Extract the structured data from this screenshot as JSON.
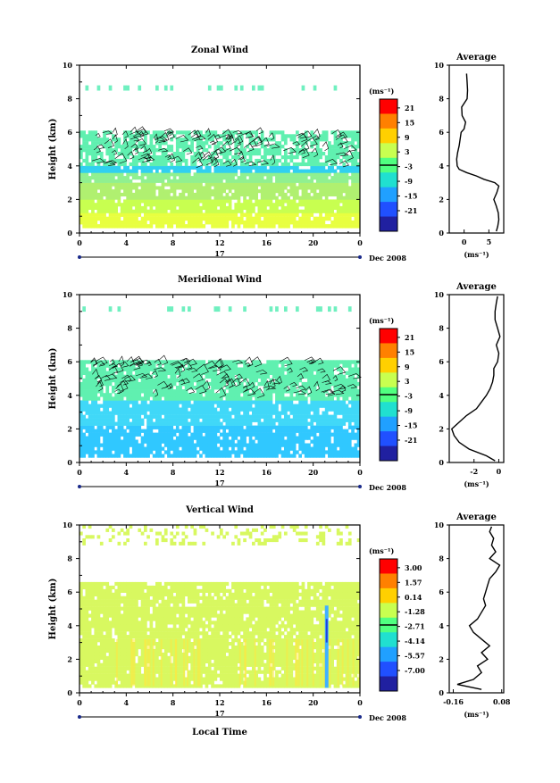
{
  "chart_data": [
    {
      "type": "heatmap",
      "title": "Zonal Wind",
      "ylabel": "Height (km)",
      "xlabel": "",
      "x_ticks": [
        "0",
        "4",
        "8",
        "12",
        "16",
        "20",
        "0"
      ],
      "y_ticks": [
        "0",
        "2",
        "4",
        "6",
        "8",
        "10"
      ],
      "xlim": [
        0,
        24
      ],
      "ylim": [
        0,
        10
      ],
      "day_label": "17",
      "month_label": "Dec 2008",
      "colorbar": {
        "unit": "(ms⁻¹)",
        "labels": [
          "21",
          "15",
          "9",
          "3",
          "-3",
          "-9",
          "-15",
          "-21"
        ],
        "colors": [
          "#ff0000",
          "#ff8000",
          "#ffd000",
          "#c8ff50",
          "#50ff80",
          "#20e0d0",
          "#20a0ff",
          "#2050ff",
          "#2020a0"
        ]
      },
      "layers": [
        {
          "height_range": [
            0.3,
            1.2
          ],
          "value": 6,
          "color": "#e8ff40"
        },
        {
          "height_range": [
            1.2,
            2.0
          ],
          "value": 4,
          "color": "#c8ff50"
        },
        {
          "height_range": [
            2.0,
            3.0
          ],
          "value": 4,
          "color": "#b0f070"
        },
        {
          "height_range": [
            3.0,
            3.6
          ],
          "value": 1,
          "color": "#90f090"
        },
        {
          "height_range": [
            3.6,
            4.0
          ],
          "value": -5,
          "color": "#30d0f0"
        },
        {
          "height_range": [
            4.0,
            6.1
          ],
          "value": 0,
          "color": "#60f0b0"
        },
        {
          "height_range": [
            8.5,
            8.8
          ],
          "value": 0,
          "color": "#70f0c0"
        }
      ],
      "average": {
        "title": "Average",
        "xlabel": "(ms⁻¹)",
        "x_ticks": [
          "0",
          "5"
        ],
        "xlim": [
          -3,
          8
        ],
        "height": [
          0.1,
          0.4,
          0.8,
          1.2,
          1.6,
          2.0,
          2.4,
          2.8,
          3.0,
          3.2,
          3.4,
          3.6,
          3.8,
          4.0,
          4.4,
          4.8,
          5.2,
          5.6,
          6.0,
          6.2,
          6.6,
          7.0,
          7.5,
          8.0,
          8.5,
          9.0,
          9.5
        ],
        "value": [
          6.5,
          6.8,
          7.0,
          6.9,
          6.5,
          6.0,
          6.6,
          7.0,
          6.2,
          4.0,
          2.5,
          0.5,
          -1.0,
          -1.4,
          -1.5,
          -1.3,
          -1.0,
          -0.8,
          -0.6,
          0.0,
          0.3,
          -0.4,
          -0.5,
          0.6,
          0.7,
          0.6,
          0.5
        ]
      }
    },
    {
      "type": "heatmap",
      "title": "Meridional Wind",
      "ylabel": "Height (km)",
      "xlabel": "",
      "x_ticks": [
        "0",
        "4",
        "8",
        "12",
        "16",
        "20",
        "0"
      ],
      "y_ticks": [
        "0",
        "2",
        "4",
        "6",
        "8",
        "10"
      ],
      "xlim": [
        0,
        24
      ],
      "ylim": [
        0,
        10
      ],
      "day_label": "17",
      "month_label": "Dec 2008",
      "colorbar": {
        "unit": "(ms⁻¹)",
        "labels": [
          "21",
          "15",
          "9",
          "3",
          "-3",
          "-9",
          "-15",
          "-21"
        ],
        "colors": [
          "#ff0000",
          "#ff8000",
          "#ffd000",
          "#c8ff50",
          "#50ff80",
          "#20e0d0",
          "#20a0ff",
          "#2050ff",
          "#2020a0"
        ]
      },
      "layers": [
        {
          "height_range": [
            0.3,
            2.2
          ],
          "value": -6,
          "color": "#30c8ff"
        },
        {
          "height_range": [
            2.2,
            3.7
          ],
          "value": -4,
          "color": "#40d8f8"
        },
        {
          "height_range": [
            3.7,
            6.1
          ],
          "value": 0,
          "color": "#60f0b0"
        },
        {
          "height_range": [
            9.0,
            9.3
          ],
          "value": 0,
          "color": "#70f0c0"
        }
      ],
      "average": {
        "title": "Average",
        "xlabel": "(ms⁻¹)",
        "x_ticks": [
          "-2",
          "0"
        ],
        "xlim": [
          -4,
          0.4
        ],
        "height": [
          0.1,
          0.4,
          0.8,
          1.2,
          1.6,
          2.0,
          2.4,
          2.8,
          3.2,
          3.6,
          4.0,
          4.4,
          4.8,
          5.2,
          5.6,
          6.0,
          6.5,
          7.0,
          7.5,
          8.0,
          8.5,
          9.0,
          9.5,
          9.9
        ],
        "value": [
          -0.3,
          -1.0,
          -2.4,
          -3.2,
          -3.6,
          -3.8,
          -3.2,
          -2.6,
          -1.8,
          -1.4,
          -1.0,
          -0.7,
          -0.5,
          -0.4,
          -0.4,
          -0.1,
          0.0,
          -0.2,
          0.1,
          -0.1,
          -0.3,
          -0.3,
          -0.2,
          -0.1
        ]
      }
    },
    {
      "type": "heatmap",
      "title": "Vertical Wind",
      "ylabel": "Height (km)",
      "xlabel": "Local Time",
      "x_ticks": [
        "0",
        "4",
        "8",
        "12",
        "16",
        "20",
        "0"
      ],
      "y_ticks": [
        "0",
        "2",
        "4",
        "6",
        "8",
        "10"
      ],
      "xlim": [
        0,
        24
      ],
      "ylim": [
        0,
        10
      ],
      "day_label": "17",
      "month_label": "Dec 2008",
      "colorbar": {
        "unit": "(ms⁻¹)",
        "labels": [
          "3.00",
          "1.57",
          "0.14",
          "-1.28",
          "-2.71",
          "-4.14",
          "-5.57",
          "-7.00"
        ],
        "colors": [
          "#ff0000",
          "#ff8000",
          "#ffd000",
          "#c8ff50",
          "#50ff80",
          "#20e0d0",
          "#20a0ff",
          "#2050ff",
          "#2020a0"
        ]
      },
      "layers": [
        {
          "height_range": [
            0.3,
            6.6
          ],
          "value": 0.3,
          "color": "#d8f860"
        },
        {
          "height_range": [
            8.8,
            10.0
          ],
          "value": 0.3,
          "color": "#d8f860"
        }
      ],
      "average": {
        "title": "Average",
        "xlabel": "(ms⁻¹)",
        "x_ticks": [
          "-0.16",
          "0.08"
        ],
        "xlim": [
          -0.18,
          0.09
        ],
        "height": [
          0.2,
          0.5,
          0.8,
          1.2,
          1.6,
          2.0,
          2.4,
          2.8,
          3.2,
          3.6,
          4.0,
          4.4,
          4.8,
          5.2,
          5.6,
          6.0,
          6.4,
          6.8,
          7.2,
          7.6,
          8.0,
          8.4,
          8.8,
          9.2,
          9.6,
          9.9
        ],
        "value": [
          -0.02,
          -0.14,
          -0.06,
          -0.02,
          -0.04,
          0.01,
          -0.02,
          0.02,
          -0.02,
          -0.06,
          -0.08,
          -0.04,
          -0.02,
          0.0,
          -0.01,
          0.0,
          0.01,
          0.02,
          0.05,
          0.07,
          0.02,
          0.05,
          0.03,
          0.04,
          0.02,
          0.03
        ]
      }
    }
  ]
}
